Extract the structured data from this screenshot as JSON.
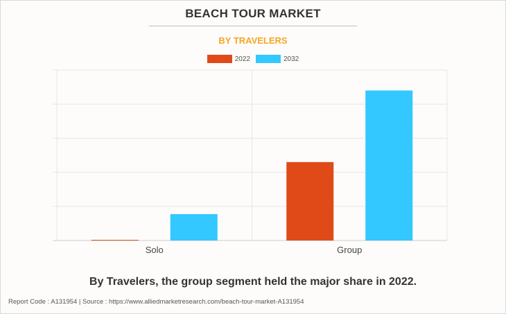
{
  "title": "BEACH TOUR MARKET",
  "subtitle": "BY TRAVELERS",
  "caption": "By Travelers, the group segment held the major share in 2022.",
  "footer": "Report Code : A131954  |  Source : https://www.alliedmarketresearch.com/beach-tour-market-A131954",
  "chart_data": {
    "type": "bar",
    "categories": [
      "Solo",
      "Group"
    ],
    "series": [
      {
        "name": "2022",
        "color": "#e04a19",
        "values": [
          0.3,
          46
        ]
      },
      {
        "name": "2032",
        "color": "#33c8ff",
        "values": [
          15.5,
          88
        ]
      }
    ],
    "ylim": [
      0,
      100
    ],
    "gridlines": true,
    "legend": "top-center",
    "y_tick_labels_shown": false
  }
}
